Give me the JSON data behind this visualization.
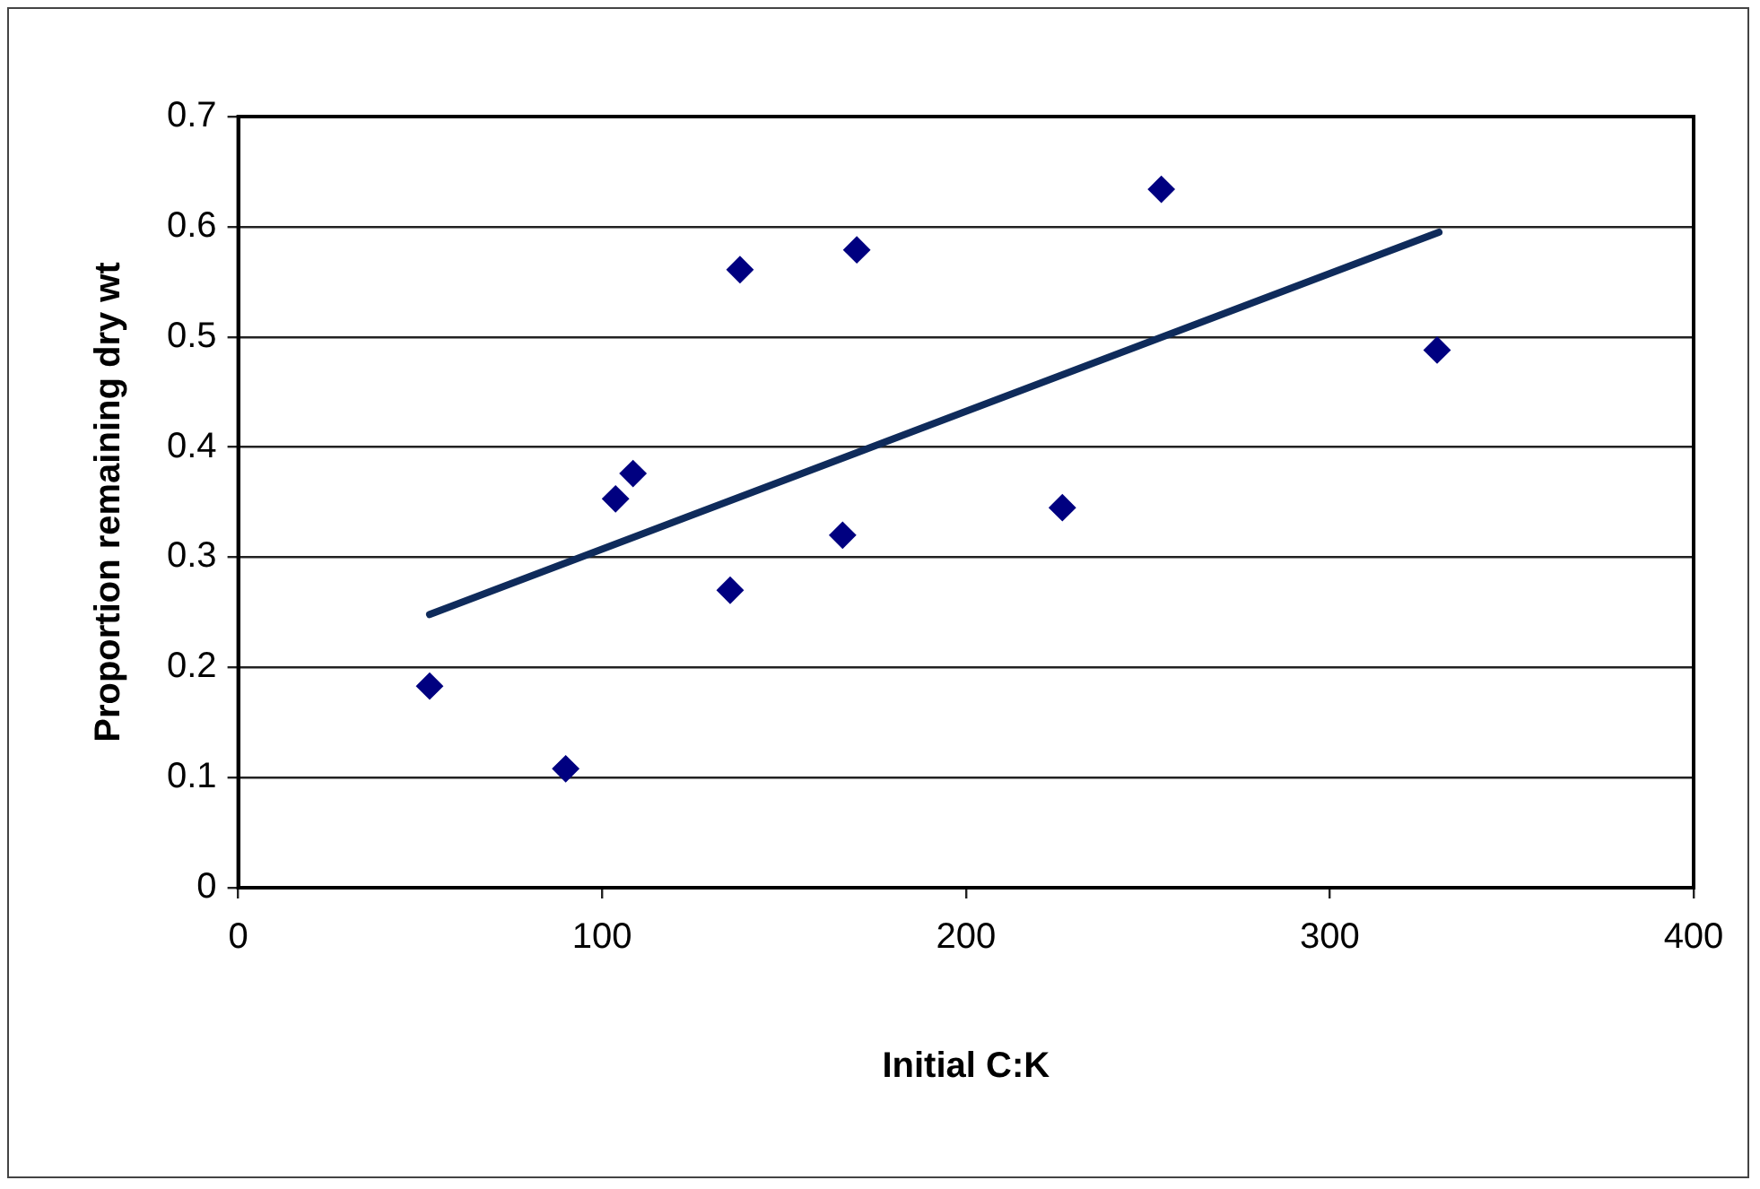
{
  "chart_data": {
    "type": "scatter",
    "xlabel": "Initial C:K",
    "ylabel": "Proportion remaining dry wt",
    "xlim": [
      0,
      400
    ],
    "xticks": [
      0,
      100,
      200,
      300,
      400
    ],
    "ylim": [
      0,
      0.7
    ],
    "yticks": [
      0,
      0.1,
      0.2,
      0.3,
      0.4,
      0.5,
      0.6,
      0.7
    ],
    "grid": "y",
    "legend": false,
    "marker": "diamond",
    "series": [
      {
        "color": "#000080",
        "x": [
          52.6,
          90.0,
          103.7,
          108.5,
          135.2,
          137.9,
          166.1,
          170.0,
          226.5,
          253.7,
          329.5
        ],
        "values": [
          0.183,
          0.108,
          0.353,
          0.376,
          0.27,
          0.561,
          0.32,
          0.579,
          0.345,
          0.634,
          0.488
        ]
      },
      {
        "type": "line",
        "color": "#0f2b5b",
        "marker": "none",
        "x": [
          52.6,
          330
        ],
        "values": [
          0.248,
          0.595
        ]
      }
    ]
  }
}
